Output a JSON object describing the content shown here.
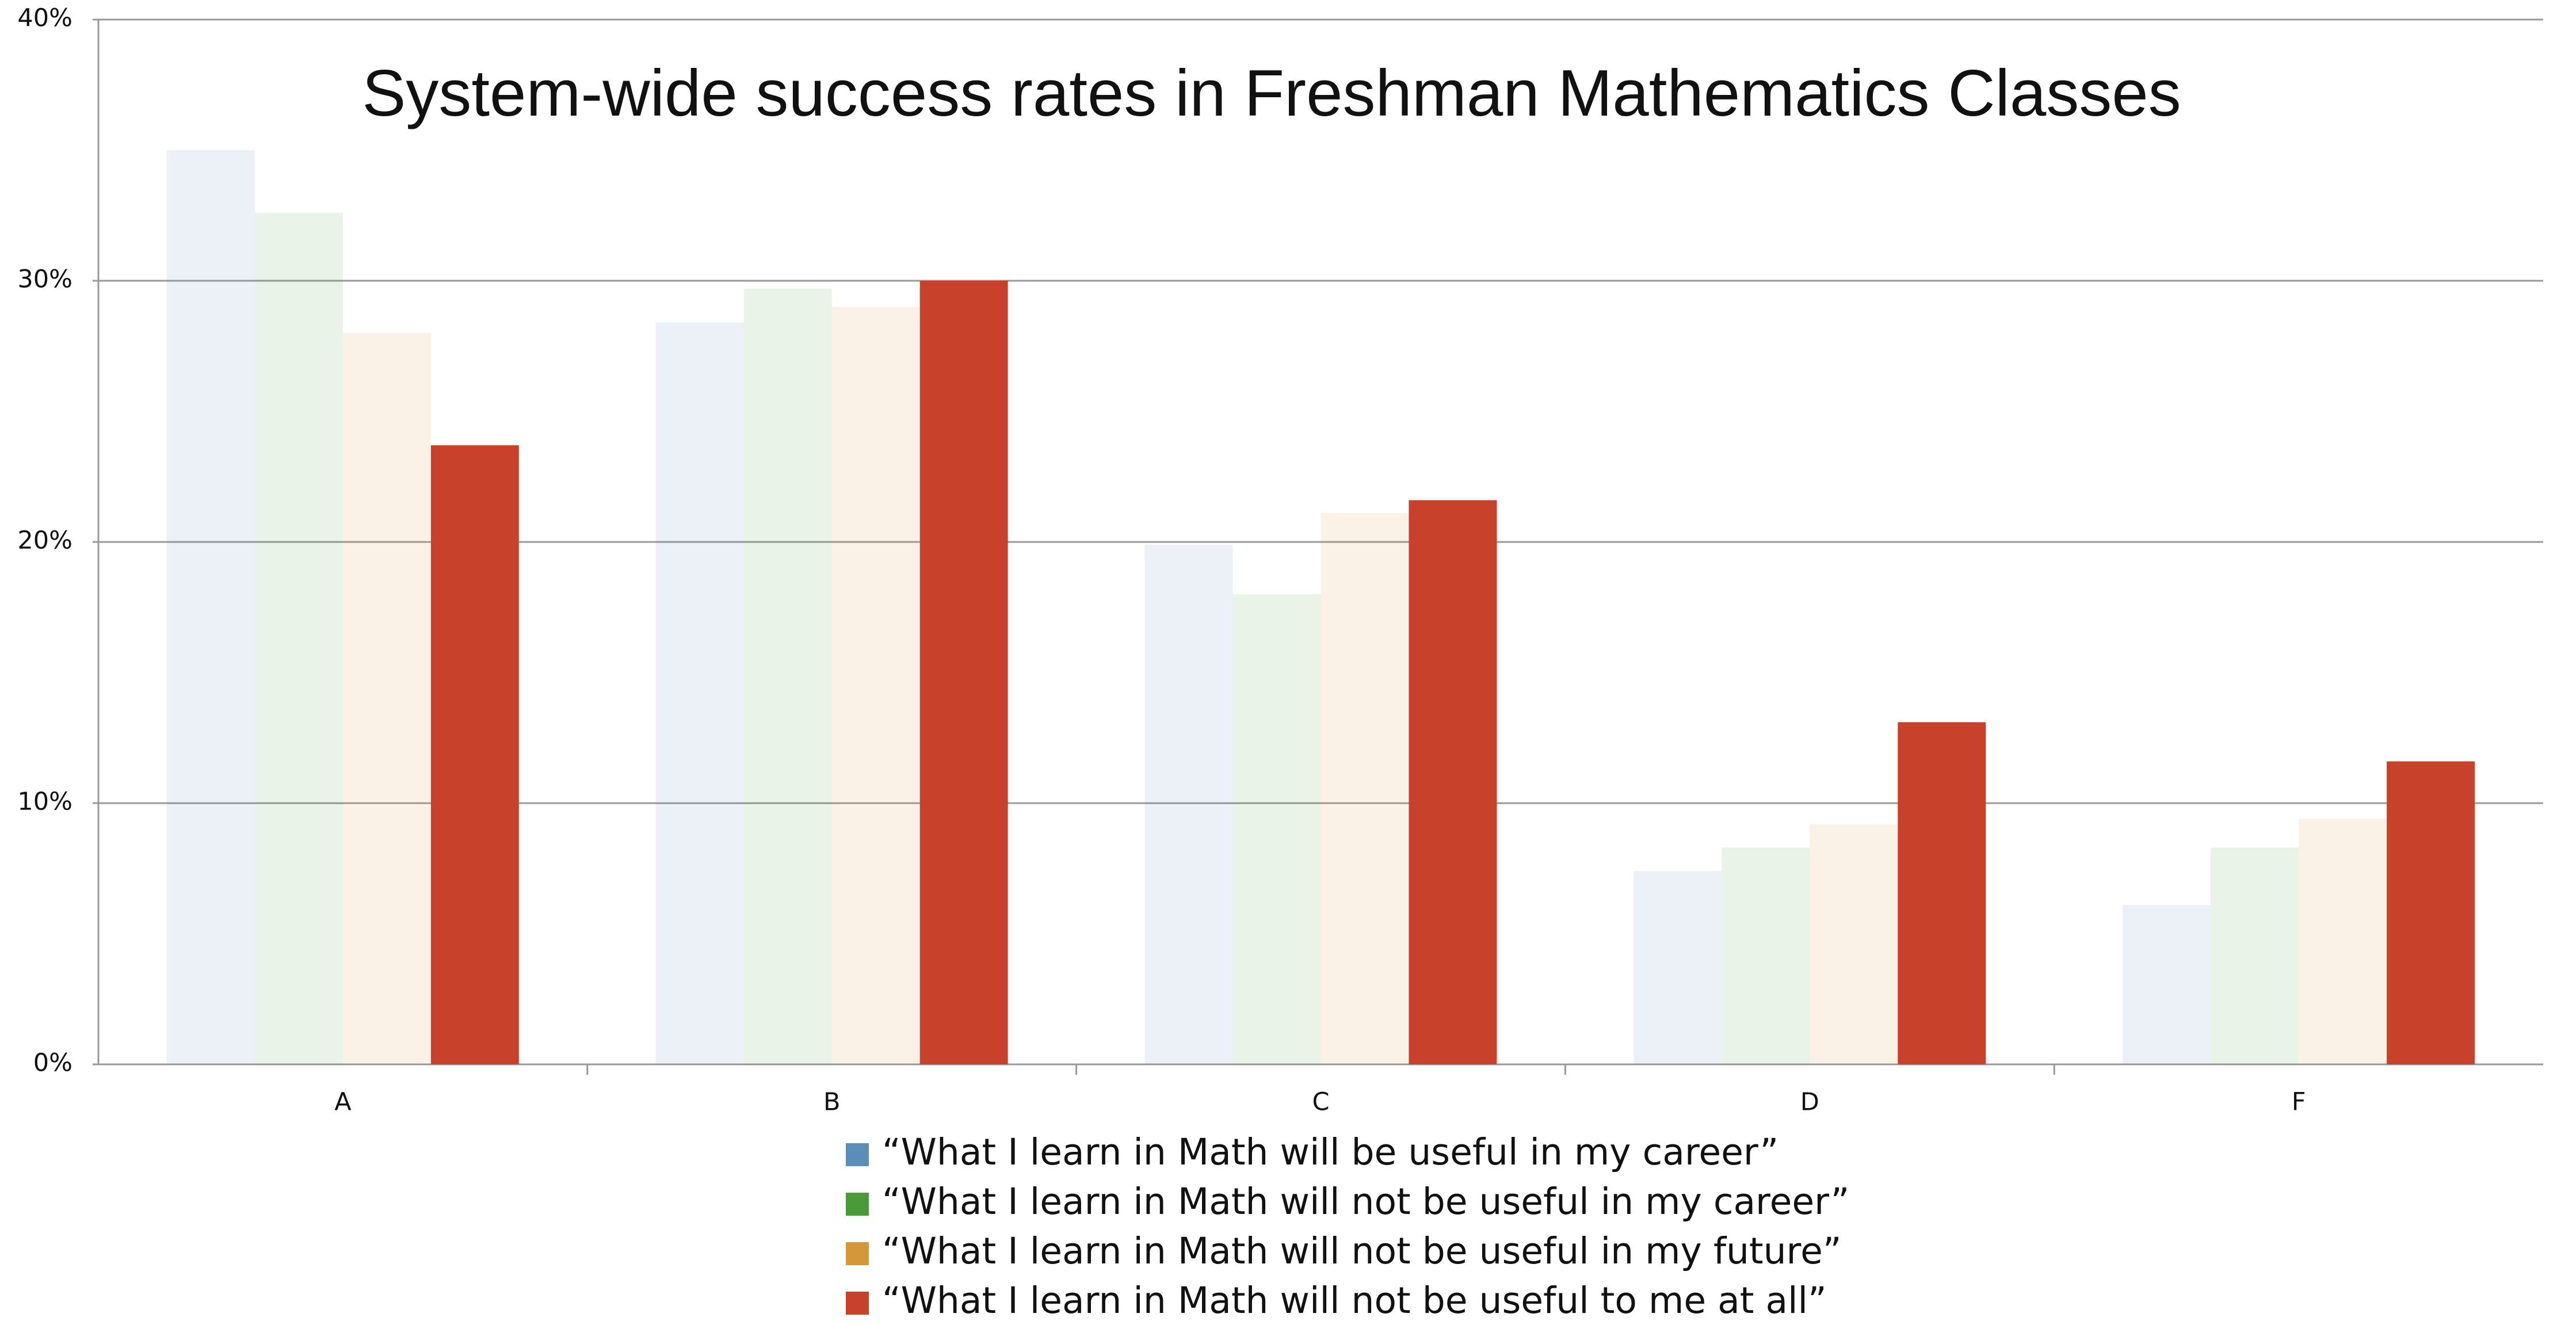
{
  "chart_data": {
    "type": "bar",
    "title": "System-wide success rates in Freshman Mathematics Classes",
    "categories": [
      "A",
      "B",
      "C",
      "D",
      "F"
    ],
    "series": [
      {
        "name": "“What I learn in Math will be useful in my career”",
        "color": "#5b8db8",
        "opacity": 0.12,
        "values": [
          35,
          28.4,
          19.9,
          7.4,
          6.1
        ]
      },
      {
        "name": "“What I learn in Math will not be useful in my career”",
        "color": "#4a9a3a",
        "opacity": 0.12,
        "values": [
          32.6,
          29.7,
          18,
          8.3,
          8.3
        ]
      },
      {
        "name": "“What I learn in Math will not be useful in my future”",
        "color": "#d4983a",
        "opacity": 0.12,
        "values": [
          28,
          29,
          21.1,
          9.2,
          9.4
        ]
      },
      {
        "name": "“What I learn in Math will not be useful to me at all”",
        "color": "#c8412a",
        "opacity": 1,
        "values": [
          23.7,
          30,
          21.6,
          13.1,
          11.6
        ]
      }
    ],
    "ylim": [
      0,
      40
    ],
    "yticks": [
      {
        "value": 0,
        "label": "0%"
      },
      {
        "value": 10,
        "label": "10%"
      },
      {
        "value": 20,
        "label": "20%"
      },
      {
        "value": 30,
        "label": "30%"
      },
      {
        "value": 40,
        "label": "40%"
      }
    ],
    "grid": true
  }
}
